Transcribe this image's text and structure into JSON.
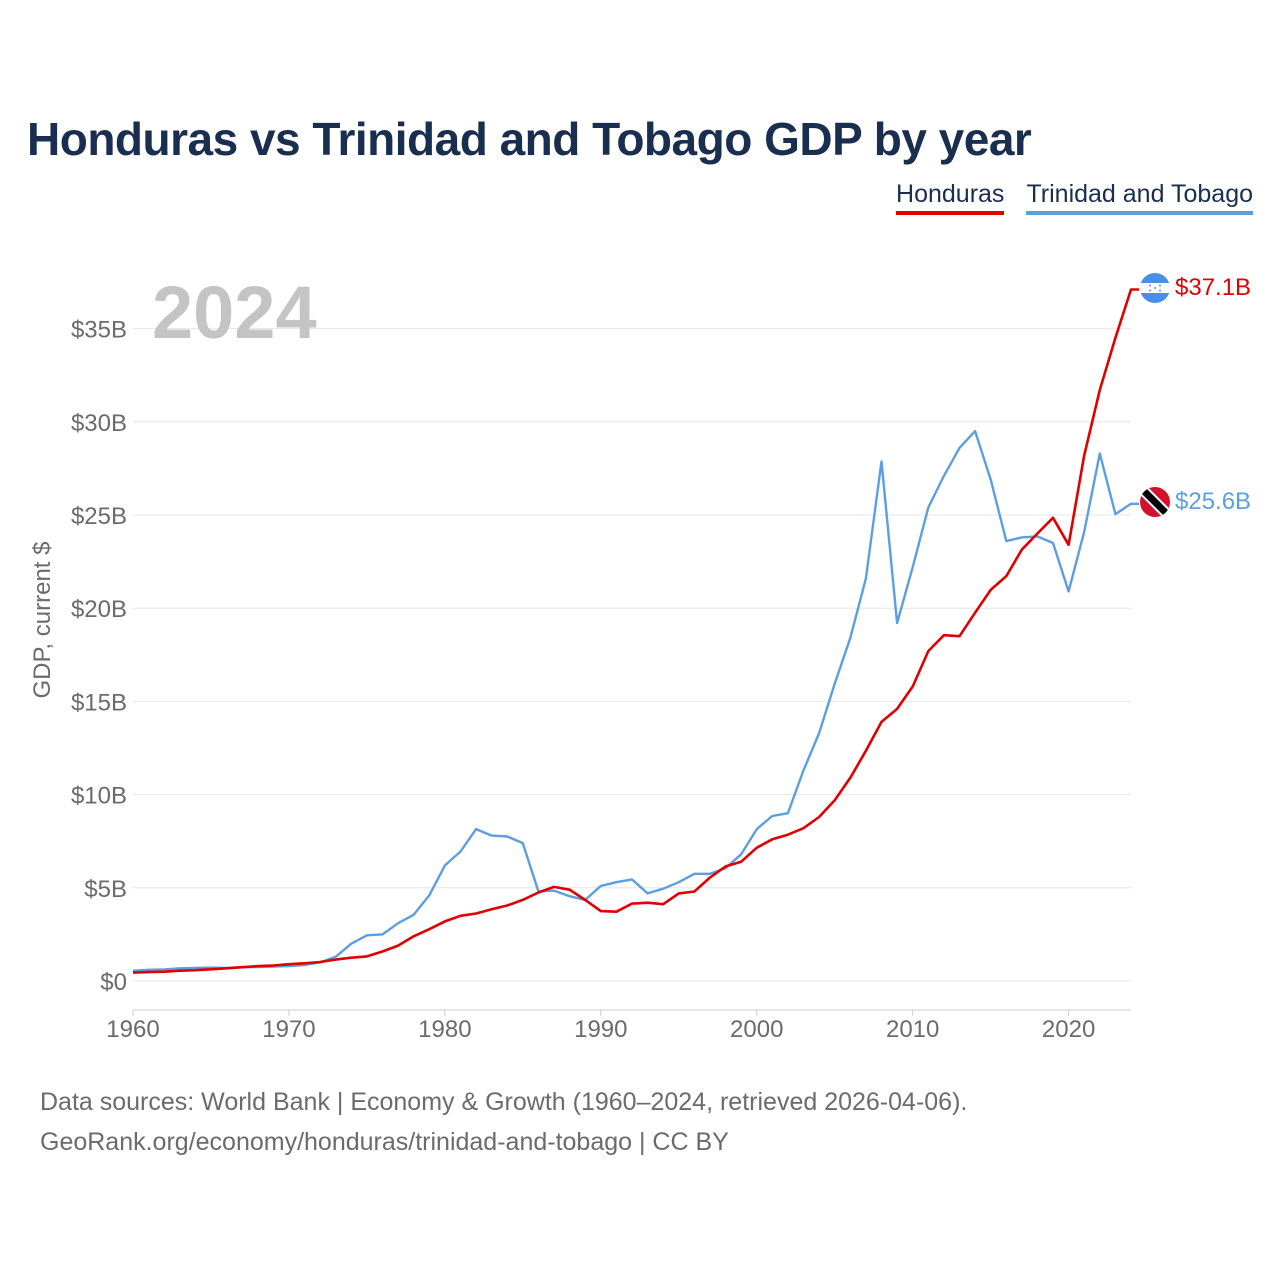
{
  "title": "Honduras vs Trinidad and Tobago GDP by year",
  "legend": [
    {
      "label": "Honduras",
      "color": "#e00000"
    },
    {
      "label": "Trinidad and Tobago",
      "color": "#5b9fe0"
    }
  ],
  "footer": {
    "line1": "Data sources: World Bank | Economy & Growth (1960–2024, retrieved 2026-04-06).",
    "line2": "GeoRank.org/economy/honduras/trinidad-and-tobago | CC BY"
  },
  "chart_data": {
    "type": "line",
    "year_label": "2024",
    "ylabel": "GDP, current $",
    "xlabel": "",
    "xlim": [
      1960,
      2024
    ],
    "ylim": [
      0,
      37.5
    ],
    "x_ticks": [
      1960,
      1970,
      1980,
      1990,
      2000,
      2010,
      2020
    ],
    "x_tick_labels": [
      "1960",
      "1970",
      "1980",
      "1990",
      "2000",
      "2010",
      "2020"
    ],
    "y_ticks": [
      0,
      5,
      10,
      15,
      20,
      25,
      30,
      35
    ],
    "y_tick_labels": [
      "$0",
      "$5B",
      "$10B",
      "$15B",
      "$20B",
      "$25B",
      "$30B",
      "$35B"
    ],
    "series": [
      {
        "name": "Honduras",
        "color": "#e00000",
        "end_label": "$37.1B",
        "start_year": 1960,
        "values": [
          0.45,
          0.48,
          0.5,
          0.55,
          0.58,
          0.63,
          0.68,
          0.74,
          0.8,
          0.83,
          0.9,
          0.95,
          1.02,
          1.15,
          1.25,
          1.32,
          1.58,
          1.9,
          2.4,
          2.78,
          3.2,
          3.5,
          3.62,
          3.85,
          4.05,
          4.35,
          4.75,
          5.05,
          4.9,
          4.35,
          3.75,
          3.72,
          4.15,
          4.2,
          4.12,
          4.7,
          4.8,
          5.55,
          6.15,
          6.4,
          7.15,
          7.6,
          7.85,
          8.2,
          8.8,
          9.7,
          10.9,
          12.35,
          13.9,
          14.6,
          15.8,
          17.7,
          18.55,
          18.5,
          19.76,
          20.98,
          21.72,
          23.14,
          24.01,
          24.85,
          23.4,
          28.2,
          31.71,
          34.5,
          37.1
        ]
      },
      {
        "name": "Trinidad and Tobago",
        "color": "#5b9fe0",
        "end_label": "$25.6B",
        "start_year": 1960,
        "values": [
          0.55,
          0.6,
          0.62,
          0.68,
          0.7,
          0.72,
          0.7,
          0.74,
          0.75,
          0.78,
          0.8,
          0.86,
          1.0,
          1.3,
          2.0,
          2.45,
          2.5,
          3.1,
          3.55,
          4.6,
          6.2,
          6.95,
          8.15,
          7.8,
          7.75,
          7.4,
          4.8,
          4.85,
          4.55,
          4.35,
          5.1,
          5.3,
          5.45,
          4.7,
          4.95,
          5.3,
          5.75,
          5.75,
          6.05,
          6.8,
          8.15,
          8.85,
          9.0,
          11.3,
          13.3,
          15.95,
          18.4,
          21.6,
          27.87,
          19.2,
          22.2,
          25.4,
          27.1,
          28.6,
          29.5,
          26.9,
          23.6,
          23.8,
          23.85,
          23.5,
          20.9,
          24.1,
          28.3,
          25.05,
          25.6
        ]
      }
    ]
  }
}
